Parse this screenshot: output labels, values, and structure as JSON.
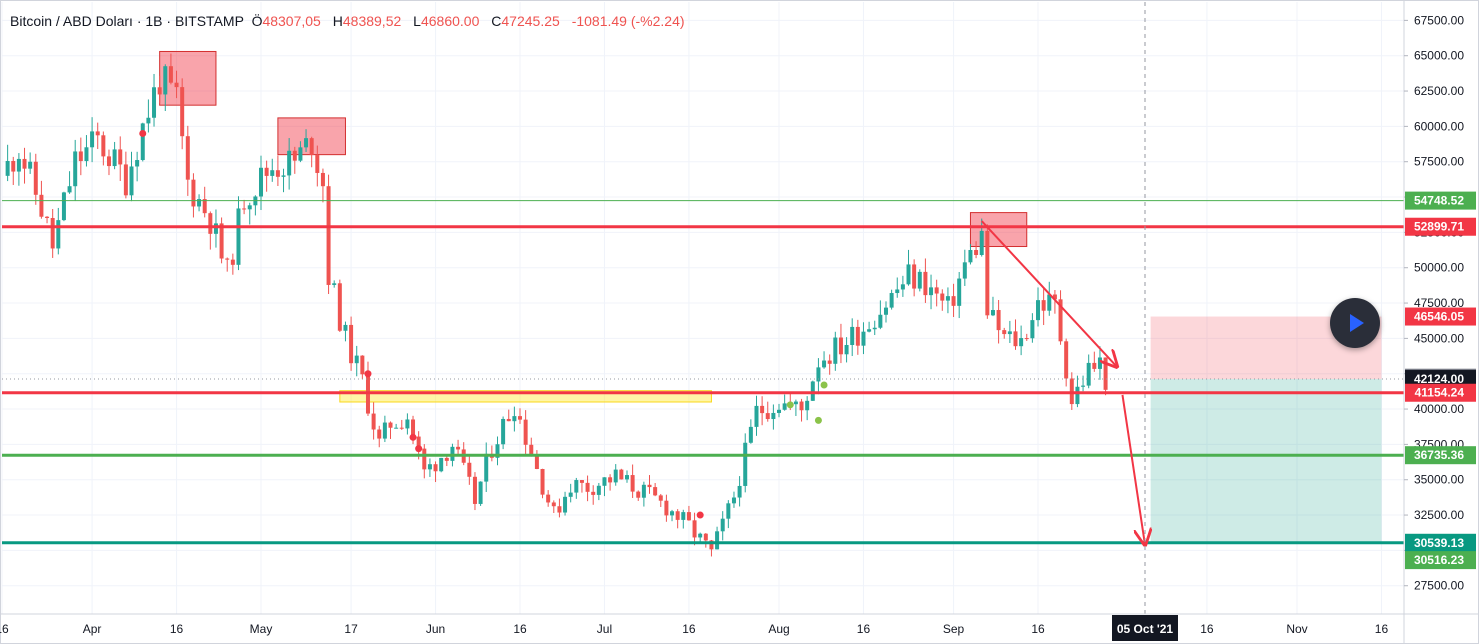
{
  "header": {
    "symbol": "Bitcoin / ABD Doları · 1B · BITSTAMP",
    "open_key": "Ö",
    "open": "48307,05",
    "high_key": "H",
    "high": "48389,52",
    "low_key": "L",
    "low": "46860.00",
    "close_key": "C",
    "close": "47245.25",
    "change": "-1081.49 (-%2.24)"
  },
  "play_button": {
    "icon": "play-icon"
  },
  "chart_data": {
    "type": "candlestick",
    "y_range": [
      25500,
      68800
    ],
    "y_ticks": [
      27500,
      30000,
      32500,
      35000,
      37500,
      40000,
      42500,
      45000,
      47500,
      50000,
      52500,
      55000,
      57500,
      60000,
      62500,
      65000,
      67500
    ],
    "y_tick_labels": [
      "27500.00",
      "30000.00",
      "32500.00",
      "35000.00",
      "37500.00",
      "40000.00",
      "42500.00",
      "45000.00",
      "47500.00",
      "50000.00",
      "52500.00",
      "55000.00",
      "57500.00",
      "60000.00",
      "62500.00",
      "65000.00",
      "67500.00"
    ],
    "x_range": [
      "2021-03-16",
      "2021-11-20"
    ],
    "x_ticks": [
      {
        "date": "2021-03-16",
        "label": "16"
      },
      {
        "date": "2021-04-01",
        "label": "Apr"
      },
      {
        "date": "2021-04-16",
        "label": "16"
      },
      {
        "date": "2021-05-01",
        "label": "May"
      },
      {
        "date": "2021-05-17",
        "label": "17"
      },
      {
        "date": "2021-06-01",
        "label": "Jun"
      },
      {
        "date": "2021-06-16",
        "label": "16"
      },
      {
        "date": "2021-07-01",
        "label": "Jul"
      },
      {
        "date": "2021-07-16",
        "label": "16"
      },
      {
        "date": "2021-08-01",
        "label": "Aug"
      },
      {
        "date": "2021-08-16",
        "label": "16"
      },
      {
        "date": "2021-09-01",
        "label": "Sep"
      },
      {
        "date": "2021-09-16",
        "label": "16"
      },
      {
        "date": "2021-10-16",
        "label": "16"
      },
      {
        "date": "2021-11-01",
        "label": "Nov"
      },
      {
        "date": "2021-11-16",
        "label": "16"
      }
    ],
    "grid": true,
    "price_path": [
      [
        "2021-03-16",
        56500
      ],
      [
        "2021-03-19",
        58500
      ],
      [
        "2021-03-23",
        54200
      ],
      [
        "2021-03-25",
        51500
      ],
      [
        "2021-03-29",
        57500
      ],
      [
        "2021-04-02",
        59000
      ],
      [
        "2021-04-07",
        56300
      ],
      [
        "2021-04-10",
        60000
      ],
      [
        "2021-04-13",
        63400
      ],
      [
        "2021-04-16",
        61800
      ],
      [
        "2021-04-18",
        56000
      ],
      [
        "2021-04-22",
        53500
      ],
      [
        "2021-04-25",
        49500
      ],
      [
        "2021-04-28",
        55000
      ],
      [
        "2021-05-03",
        57200
      ],
      [
        "2021-05-07",
        57500
      ],
      [
        "2021-05-10",
        59000
      ],
      [
        "2021-05-12",
        56000
      ],
      [
        "2021-05-13",
        49500
      ],
      [
        "2021-05-16",
        45000
      ],
      [
        "2021-05-19",
        42000
      ],
      [
        "2021-05-22",
        37500
      ],
      [
        "2021-05-24",
        39000
      ],
      [
        "2021-05-27",
        39500
      ],
      [
        "2021-05-30",
        35500
      ],
      [
        "2021-06-04",
        37500
      ],
      [
        "2021-06-08",
        33500
      ],
      [
        "2021-06-11",
        37300
      ],
      [
        "2021-06-15",
        40400
      ],
      [
        "2021-06-19",
        35800
      ],
      [
        "2021-06-22",
        32500
      ],
      [
        "2021-06-25",
        34700
      ],
      [
        "2021-06-28",
        34500
      ],
      [
        "2021-07-03",
        35200
      ],
      [
        "2021-07-07",
        34300
      ],
      [
        "2021-07-12",
        33100
      ],
      [
        "2021-07-16",
        31700
      ],
      [
        "2021-07-20",
        29800
      ],
      [
        "2021-07-24",
        33800
      ],
      [
        "2021-07-28",
        39800
      ],
      [
        "2021-08-01",
        40500
      ],
      [
        "2021-08-05",
        39900
      ],
      [
        "2021-08-08",
        43500
      ],
      [
        "2021-08-12",
        44500
      ],
      [
        "2021-08-16",
        45800
      ],
      [
        "2021-08-20",
        47500
      ],
      [
        "2021-08-24",
        49400
      ],
      [
        "2021-08-27",
        48900
      ],
      [
        "2021-08-31",
        47000
      ],
      [
        "2021-09-03",
        50200
      ],
      [
        "2021-09-06",
        52200
      ],
      [
        "2021-09-07",
        46800
      ],
      [
        "2021-09-10",
        45000
      ],
      [
        "2021-09-13",
        44800
      ],
      [
        "2021-09-16",
        47600
      ],
      [
        "2021-09-19",
        47300
      ],
      [
        "2021-09-21",
        43000
      ],
      [
        "2021-09-22",
        40600
      ],
      [
        "2021-09-25",
        42800
      ],
      [
        "2021-09-27",
        43200
      ],
      [
        "2021-09-28",
        42124
      ]
    ],
    "horizontal_levels": [
      {
        "value": 54748.52,
        "label": "54748.52",
        "color": "#4caf50",
        "style": "thin"
      },
      {
        "value": 52899.71,
        "label": "52899.71",
        "color": "#f23645",
        "style": "thick"
      },
      {
        "value": 46546.05,
        "label": "46546.05",
        "color": "#f23645",
        "style": "target"
      },
      {
        "value": 42217.65,
        "label": "42217.65",
        "color": "#787b86",
        "style": "marker"
      },
      {
        "value": 42124.0,
        "label": "42124.00",
        "color": "#131722",
        "style": "dotted"
      },
      {
        "value": 41154.24,
        "label": "41154.24",
        "color": "#f23645",
        "style": "thick"
      },
      {
        "value": 36735.36,
        "label": "36735.36",
        "color": "#4caf50",
        "style": "thick"
      },
      {
        "value": 30539.13,
        "label": "30539.13",
        "color": "#089981",
        "style": "thick"
      },
      {
        "value": 30516.23,
        "label": "30516.23",
        "color": "#4caf50",
        "style": "marker-below"
      }
    ],
    "zones": [
      {
        "x": [
          "2021-04-13",
          "2021-04-23"
        ],
        "y": [
          61500,
          65300
        ],
        "color": "#f23645"
      },
      {
        "x": [
          "2021-05-04",
          "2021-05-16"
        ],
        "y": [
          58000,
          60600
        ],
        "color": "#f23645"
      },
      {
        "x": [
          "2021-09-04",
          "2021-09-14"
        ],
        "y": [
          51500,
          53900
        ],
        "color": "#f23645"
      },
      {
        "x": [
          "2021-05-15",
          "2021-07-20"
        ],
        "y": [
          40500,
          41300
        ],
        "color": "#ffeb3b"
      }
    ],
    "position": {
      "x": [
        "2021-10-06",
        "2021-11-16"
      ],
      "entry": 42124.0,
      "stop": 46546.05,
      "target": 30539.13
    },
    "arrows": [
      {
        "from": [
          "2021-09-06",
          53300
        ],
        "to": [
          "2021-09-30",
          43000
        ],
        "color": "#f23645"
      },
      {
        "from": [
          "2021-10-01",
          41000
        ],
        "to": [
          "2021-10-05",
          30400
        ],
        "color": "#f23645"
      }
    ],
    "signal_dots": [
      {
        "date": "2021-04-10",
        "value": 59500,
        "color": "#f23645"
      },
      {
        "date": "2021-05-20",
        "value": 42500,
        "color": "#f23645"
      },
      {
        "date": "2021-05-28",
        "value": 38000,
        "color": "#f23645"
      },
      {
        "date": "2021-05-29",
        "value": 37200,
        "color": "#f23645"
      },
      {
        "date": "2021-07-18",
        "value": 32500,
        "color": "#f23645"
      },
      {
        "date": "2021-08-03",
        "value": 40300,
        "color": "#8bc34a"
      },
      {
        "date": "2021-08-08",
        "value": 39200,
        "color": "#8bc34a"
      },
      {
        "date": "2021-08-09",
        "value": 41700,
        "color": "#8bc34a"
      }
    ],
    "crosshair": {
      "date": "2021-10-05",
      "label": "05 Oct '21"
    }
  }
}
